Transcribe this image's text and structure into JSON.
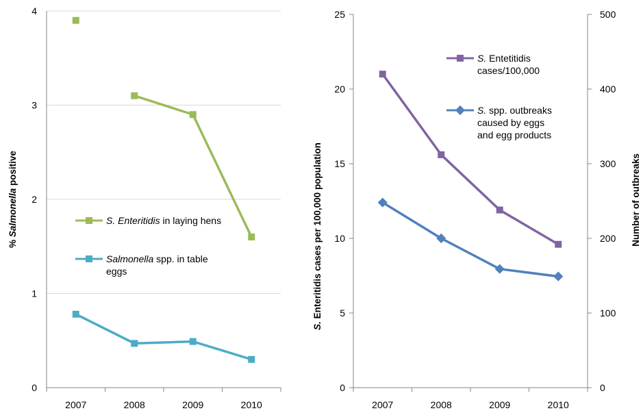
{
  "chart_data": [
    {
      "type": "line",
      "categories": [
        "2007",
        "2008",
        "2009",
        "2010"
      ],
      "ylabel_prefix": "% ",
      "ylabel_italic": "Salmonella",
      "ylabel_suffix": "  positive",
      "ylim": [
        0,
        4
      ],
      "yticks": [
        "0",
        "1",
        "2",
        "3",
        "4"
      ],
      "grid": true,
      "legend_placement": "center-left",
      "series": [
        {
          "name_italic": "S. Enteritidis",
          "name_rest": " in laying hens",
          "color": "#9bbb59",
          "marker": "square",
          "values": [
            3.9,
            3.1,
            2.9,
            1.6
          ],
          "connect_from_index": 1
        },
        {
          "name_italic": "Salmonella",
          "name_rest": " spp. in table",
          "name_line2": "eggs",
          "color": "#4bacc6",
          "marker": "square",
          "values": [
            0.78,
            0.47,
            0.49,
            0.3
          ],
          "connect_from_index": 0
        }
      ]
    },
    {
      "type": "line",
      "categories": [
        "2007",
        "2008",
        "2009",
        "2010"
      ],
      "ylabel_italic": "S.",
      "ylabel_rest": " Enteritidis cases per 100,000 population",
      "ylim": [
        0,
        25
      ],
      "yticks": [
        "0",
        "5",
        "10",
        "15",
        "20",
        "25"
      ],
      "y2label": "Number of  outbreaks",
      "y2lim": [
        0,
        500
      ],
      "y2ticks": [
        "0",
        "100",
        "200",
        "300",
        "400",
        "500"
      ],
      "grid": false,
      "legend_placement": "top-right",
      "series": [
        {
          "name_italic": "S.",
          "name_rest": " Entetitidis",
          "name_line2": "cases/100,000",
          "color": "#8064a2",
          "marker": "square",
          "axis": "left",
          "values": [
            21,
            15.6,
            11.9,
            9.6
          ]
        },
        {
          "name_italic": "S.",
          "name_rest": " spp. outbreaks",
          "name_line2": "caused by eggs",
          "name_line3": "and egg products",
          "color": "#4f81bd",
          "marker": "diamond",
          "axis": "right",
          "values": [
            248,
            200,
            159,
            149
          ]
        }
      ]
    }
  ]
}
